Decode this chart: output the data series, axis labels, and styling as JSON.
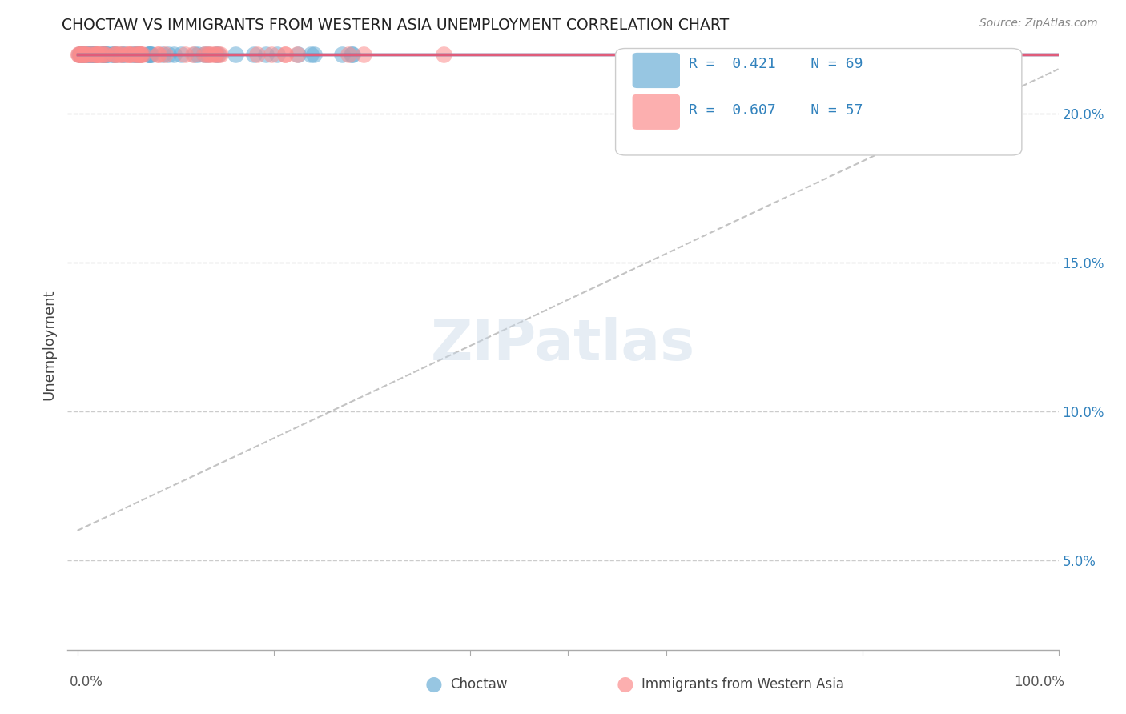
{
  "title": "CHOCTAW VS IMMIGRANTS FROM WESTERN ASIA UNEMPLOYMENT CORRELATION CHART",
  "source": "Source: ZipAtlas.com",
  "ylabel": "Unemployment",
  "ylabel_right_ticks": [
    "5.0%",
    "10.0%",
    "15.0%",
    "20.0%"
  ],
  "ylabel_right_values": [
    0.05,
    0.1,
    0.15,
    0.2
  ],
  "legend_label1": "Choctaw",
  "legend_label2": "Immigrants from Western Asia",
  "R1": "0.421",
  "N1": "69",
  "R2": "0.607",
  "N2": "57",
  "blue_color": "#6baed6",
  "pink_color": "#fc8d8d",
  "blue_line_color": "#3182bd",
  "pink_line_color": "#e05c7a",
  "dash_line_color": "#aaaaaa",
  "watermark_color": "#c8d8e8",
  "watermark": "ZIPatlas",
  "ymin": 0.02,
  "ymax": 0.225,
  "xmin": -0.01,
  "xmax": 1.0
}
